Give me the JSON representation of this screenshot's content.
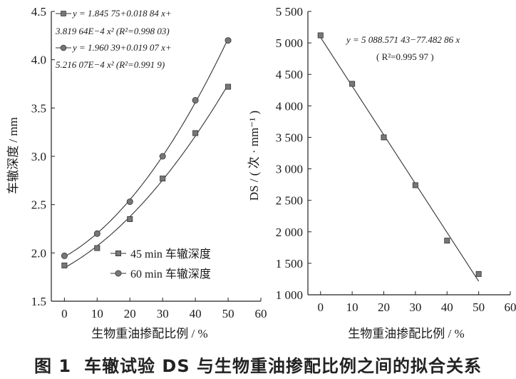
{
  "chart_data": [
    {
      "type": "line",
      "xlabel": "生物重油掺配比例 / %",
      "ylabel": "车辙深度 / mm",
      "xlim": [
        -4,
        60
      ],
      "ylim": [
        1.5,
        4.5
      ],
      "xticks": [
        "0",
        "10",
        "20",
        "30",
        "40",
        "50",
        "60"
      ],
      "yticks": [
        "1.5",
        "2.0",
        "2.5",
        "3.0",
        "3.5",
        "4.0",
        "4.5"
      ],
      "x": [
        0,
        10,
        20,
        30,
        40,
        50
      ],
      "series": [
        {
          "name": "45 min 车辙深度",
          "marker": "square",
          "values": [
            1.87,
            2.05,
            2.35,
            2.77,
            3.24,
            3.72
          ],
          "equation": [
            "y = 1.845 75+0.018 84 x+",
            "3.819 64E−4 x² (R²=0.998 03)"
          ],
          "coef": [
            1.84575,
            0.01884,
            0.000381964
          ]
        },
        {
          "name": "60 min 车辙深度",
          "marker": "circle",
          "values": [
            1.97,
            2.2,
            2.53,
            3.0,
            3.58,
            4.2
          ],
          "equation": [
            "y = 1.960 39+0.019 07 x+",
            "5.216 07E−4 x² (R²=0.991 9)"
          ],
          "coef": [
            1.96039,
            0.01907,
            0.000521607
          ]
        }
      ],
      "legend": "bottom-right",
      "grid": false
    },
    {
      "type": "scatter",
      "xlabel": "生物重油掺配比例 / %",
      "ylabel": "DS / ( 次 · mm⁻¹ )",
      "xlim": [
        -4,
        60
      ],
      "ylim": [
        1000,
        5500
      ],
      "xticks": [
        "0",
        "10",
        "20",
        "30",
        "40",
        "50",
        "60"
      ],
      "yticks": [
        "1 000",
        "1 500",
        "2 000",
        "2 500",
        "3 000",
        "3 500",
        "4 000",
        "4 500",
        "5 000",
        "5 500"
      ],
      "x": [
        0,
        10,
        20,
        30,
        40,
        50
      ],
      "series": [
        {
          "marker": "square",
          "values": [
            5120,
            4350,
            3500,
            2740,
            1860,
            1330
          ],
          "fit": "linear",
          "coef": [
            5088.57143,
            -77.48286
          ]
        }
      ],
      "equation": [
        "y = 5 088.571 43−77.482 86 x",
        "( R²=0.995 97 )"
      ],
      "grid": false
    }
  ],
  "caption": {
    "number": "图 1",
    "text": "车辙试验 DS 与生物重油掺配比例之间的拟合关系"
  }
}
